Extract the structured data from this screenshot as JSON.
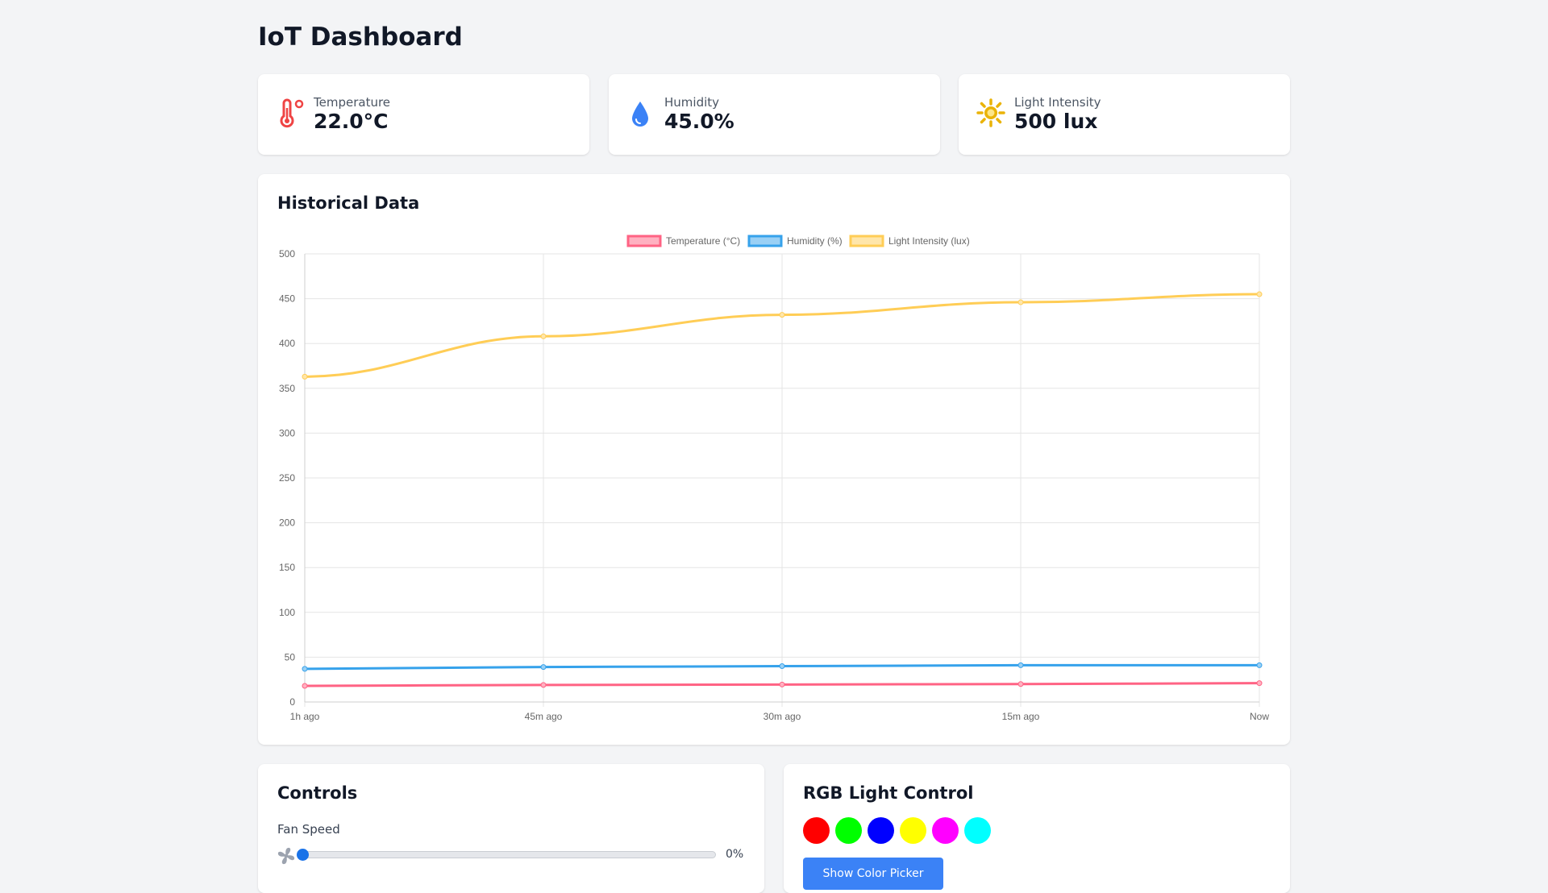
{
  "header": {
    "title": "IoT Dashboard"
  },
  "stats": [
    {
      "label": "Temperature",
      "value": "22.0°C",
      "icon": "thermometer-icon",
      "color": "#ef4444"
    },
    {
      "label": "Humidity",
      "value": "45.0%",
      "icon": "water-drop-icon",
      "color": "#3b82f6"
    },
    {
      "label": "Light Intensity",
      "value": "500 lux",
      "icon": "sun-icon",
      "color": "#eab308"
    }
  ],
  "history": {
    "title": "Historical Data",
    "chart_data": {
      "type": "line",
      "x": [
        "1h ago",
        "45m ago",
        "30m ago",
        "15m ago",
        "Now"
      ],
      "ylim": [
        0,
        500
      ],
      "yticks": [
        0,
        50,
        100,
        150,
        200,
        250,
        300,
        350,
        400,
        450,
        500
      ],
      "grid": true,
      "legend": "top",
      "series": [
        {
          "name": "Temperature (°C)",
          "color": "#ff6384",
          "fill": "#ffb1c1",
          "values": [
            18,
            19,
            19.5,
            20,
            21
          ]
        },
        {
          "name": "Humidity (%)",
          "color": "#36a2eb",
          "fill": "#9ad0f5",
          "values": [
            37,
            39,
            40,
            41,
            41
          ]
        },
        {
          "name": "Light Intensity (lux)",
          "color": "#ffcd56",
          "fill": "#ffe6aa",
          "values": [
            363,
            408,
            432,
            446,
            455
          ]
        }
      ]
    }
  },
  "controls": {
    "title": "Controls",
    "fan_label": "Fan Speed",
    "fan_icon": "fan-icon",
    "fan_speed": 0,
    "fan_value_text": "0%",
    "slider_color": "#1a73e8"
  },
  "rgb": {
    "title": "RGB Light Control",
    "swatches": [
      "#ff0000",
      "#00ff00",
      "#0000ff",
      "#ffff00",
      "#ff00ff",
      "#00ffff"
    ],
    "picker_button": "Show Color Picker",
    "button_color": "#3b82f6"
  }
}
